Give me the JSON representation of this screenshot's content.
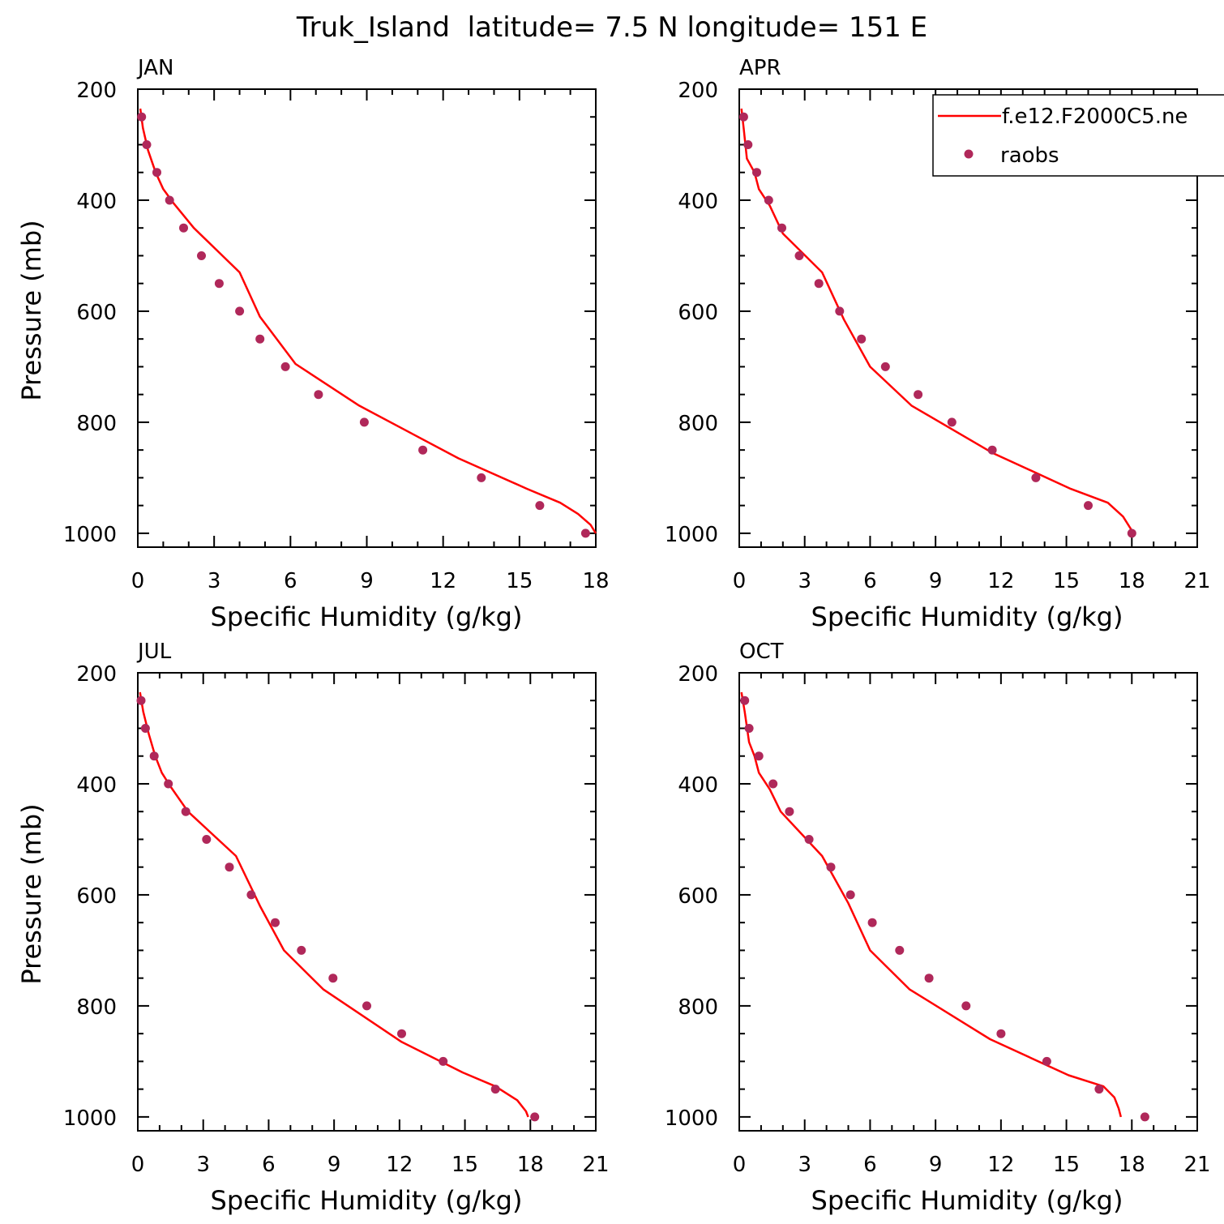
{
  "figure_title": "Truk_Island  latitude= 7.5 N longitude= 151 E",
  "legend": {
    "model_label": "f.e12.F2000C5.ne",
    "obs_label": "raobs"
  },
  "colors": {
    "model_line": "#ff0000",
    "obs_marker": "#b0285a",
    "axes": "#000000"
  },
  "chart_data": [
    {
      "type": "line",
      "panel_label": "JAN",
      "xlabel": "Specific Humidity (g/kg)",
      "ylabel": "Pressure (mb)",
      "xlim": [
        0,
        18
      ],
      "ylim": [
        200,
        1025
      ],
      "y_inverted": true,
      "xticks": [
        0,
        3,
        6,
        9,
        12,
        15,
        18
      ],
      "yticks": [
        200,
        400,
        600,
        800,
        1000
      ],
      "series": [
        {
          "name": "f.e12.F2000C5.ne",
          "style": "line",
          "x": [
            0.1,
            0.2,
            0.4,
            0.7,
            1.0,
            1.4,
            2.2,
            4.0,
            4.8,
            6.2,
            8.7,
            12.6,
            15.3,
            16.6,
            17.3,
            17.8,
            18.0
          ],
          "y": [
            235,
            270,
            310,
            350,
            380,
            405,
            450,
            530,
            610,
            695,
            770,
            865,
            920,
            945,
            965,
            985,
            1000
          ]
        },
        {
          "name": "raobs",
          "style": "marker",
          "x": [
            0.15,
            0.35,
            0.75,
            1.25,
            1.8,
            2.5,
            3.2,
            4.0,
            4.8,
            5.8,
            7.1,
            8.9,
            11.2,
            13.5,
            15.8,
            17.6
          ],
          "y": [
            250,
            300,
            350,
            400,
            450,
            500,
            550,
            600,
            650,
            700,
            750,
            800,
            850,
            900,
            950,
            1000
          ]
        }
      ]
    },
    {
      "type": "line",
      "panel_label": "APR",
      "xlabel": "Specific Humidity (g/kg)",
      "ylabel": "",
      "xlim": [
        0,
        21
      ],
      "ylim": [
        200,
        1025
      ],
      "y_inverted": true,
      "xticks": [
        0,
        3,
        6,
        9,
        12,
        15,
        18,
        21
      ],
      "yticks": [
        200,
        400,
        600,
        800,
        1000
      ],
      "series": [
        {
          "name": "f.e12.F2000C5.ne",
          "style": "line",
          "x": [
            0.1,
            0.2,
            0.35,
            0.7,
            0.9,
            1.4,
            2.0,
            3.8,
            4.8,
            6.0,
            7.9,
            11.6,
            15.2,
            16.9,
            17.6,
            18.0
          ],
          "y": [
            235,
            270,
            325,
            350,
            380,
            410,
            460,
            530,
            615,
            700,
            770,
            855,
            920,
            945,
            970,
            995
          ]
        },
        {
          "name": "raobs",
          "style": "marker",
          "x": [
            0.2,
            0.4,
            0.8,
            1.35,
            1.95,
            2.75,
            3.65,
            4.6,
            5.6,
            6.7,
            8.2,
            9.75,
            11.6,
            13.6,
            16.0,
            18.0
          ],
          "y": [
            250,
            300,
            350,
            400,
            450,
            500,
            550,
            600,
            650,
            700,
            750,
            800,
            850,
            900,
            950,
            1000
          ]
        }
      ]
    },
    {
      "type": "line",
      "panel_label": "JUL",
      "xlabel": "Specific Humidity (g/kg)",
      "ylabel": "Pressure (mb)",
      "xlim": [
        0,
        21
      ],
      "ylim": [
        200,
        1025
      ],
      "y_inverted": true,
      "xticks": [
        0,
        3,
        6,
        9,
        12,
        15,
        18,
        21
      ],
      "yticks": [
        200,
        400,
        600,
        800,
        1000
      ],
      "series": [
        {
          "name": "f.e12.F2000C5.ne",
          "style": "line",
          "x": [
            0.1,
            0.25,
            0.5,
            0.8,
            1.1,
            1.5,
            2.3,
            4.5,
            5.6,
            6.7,
            8.5,
            12.1,
            14.9,
            16.4,
            17.4,
            17.8,
            17.9
          ],
          "y": [
            235,
            270,
            310,
            350,
            380,
            405,
            450,
            530,
            620,
            700,
            770,
            865,
            920,
            945,
            970,
            990,
            1000
          ]
        },
        {
          "name": "raobs",
          "style": "marker",
          "x": [
            0.15,
            0.35,
            0.75,
            1.4,
            2.2,
            3.15,
            4.2,
            5.2,
            6.3,
            7.5,
            8.95,
            10.5,
            12.1,
            14.0,
            16.4,
            18.2
          ],
          "y": [
            250,
            300,
            350,
            400,
            450,
            500,
            550,
            600,
            650,
            700,
            750,
            800,
            850,
            900,
            950,
            1000
          ]
        }
      ]
    },
    {
      "type": "line",
      "panel_label": "OCT",
      "xlabel": "Specific Humidity (g/kg)",
      "ylabel": "",
      "xlim": [
        0,
        21
      ],
      "ylim": [
        200,
        1025
      ],
      "y_inverted": true,
      "xticks": [
        0,
        3,
        6,
        9,
        12,
        15,
        18,
        21
      ],
      "yticks": [
        200,
        400,
        600,
        800,
        1000
      ],
      "series": [
        {
          "name": "f.e12.F2000C5.ne",
          "style": "line",
          "x": [
            0.1,
            0.25,
            0.45,
            0.7,
            0.9,
            1.4,
            1.9,
            3.8,
            5.0,
            6.0,
            7.8,
            11.5,
            15.1,
            16.7,
            17.2,
            17.4,
            17.5
          ],
          "y": [
            235,
            270,
            325,
            350,
            380,
            410,
            450,
            530,
            615,
            700,
            770,
            860,
            925,
            945,
            965,
            985,
            1000
          ]
        },
        {
          "name": "raobs",
          "style": "marker",
          "x": [
            0.25,
            0.45,
            0.9,
            1.55,
            2.3,
            3.2,
            4.2,
            5.1,
            6.1,
            7.35,
            8.7,
            10.4,
            12.0,
            14.1,
            16.5,
            18.6
          ],
          "y": [
            250,
            300,
            350,
            400,
            450,
            500,
            550,
            600,
            650,
            700,
            750,
            800,
            850,
            900,
            950,
            1000
          ]
        }
      ]
    }
  ]
}
